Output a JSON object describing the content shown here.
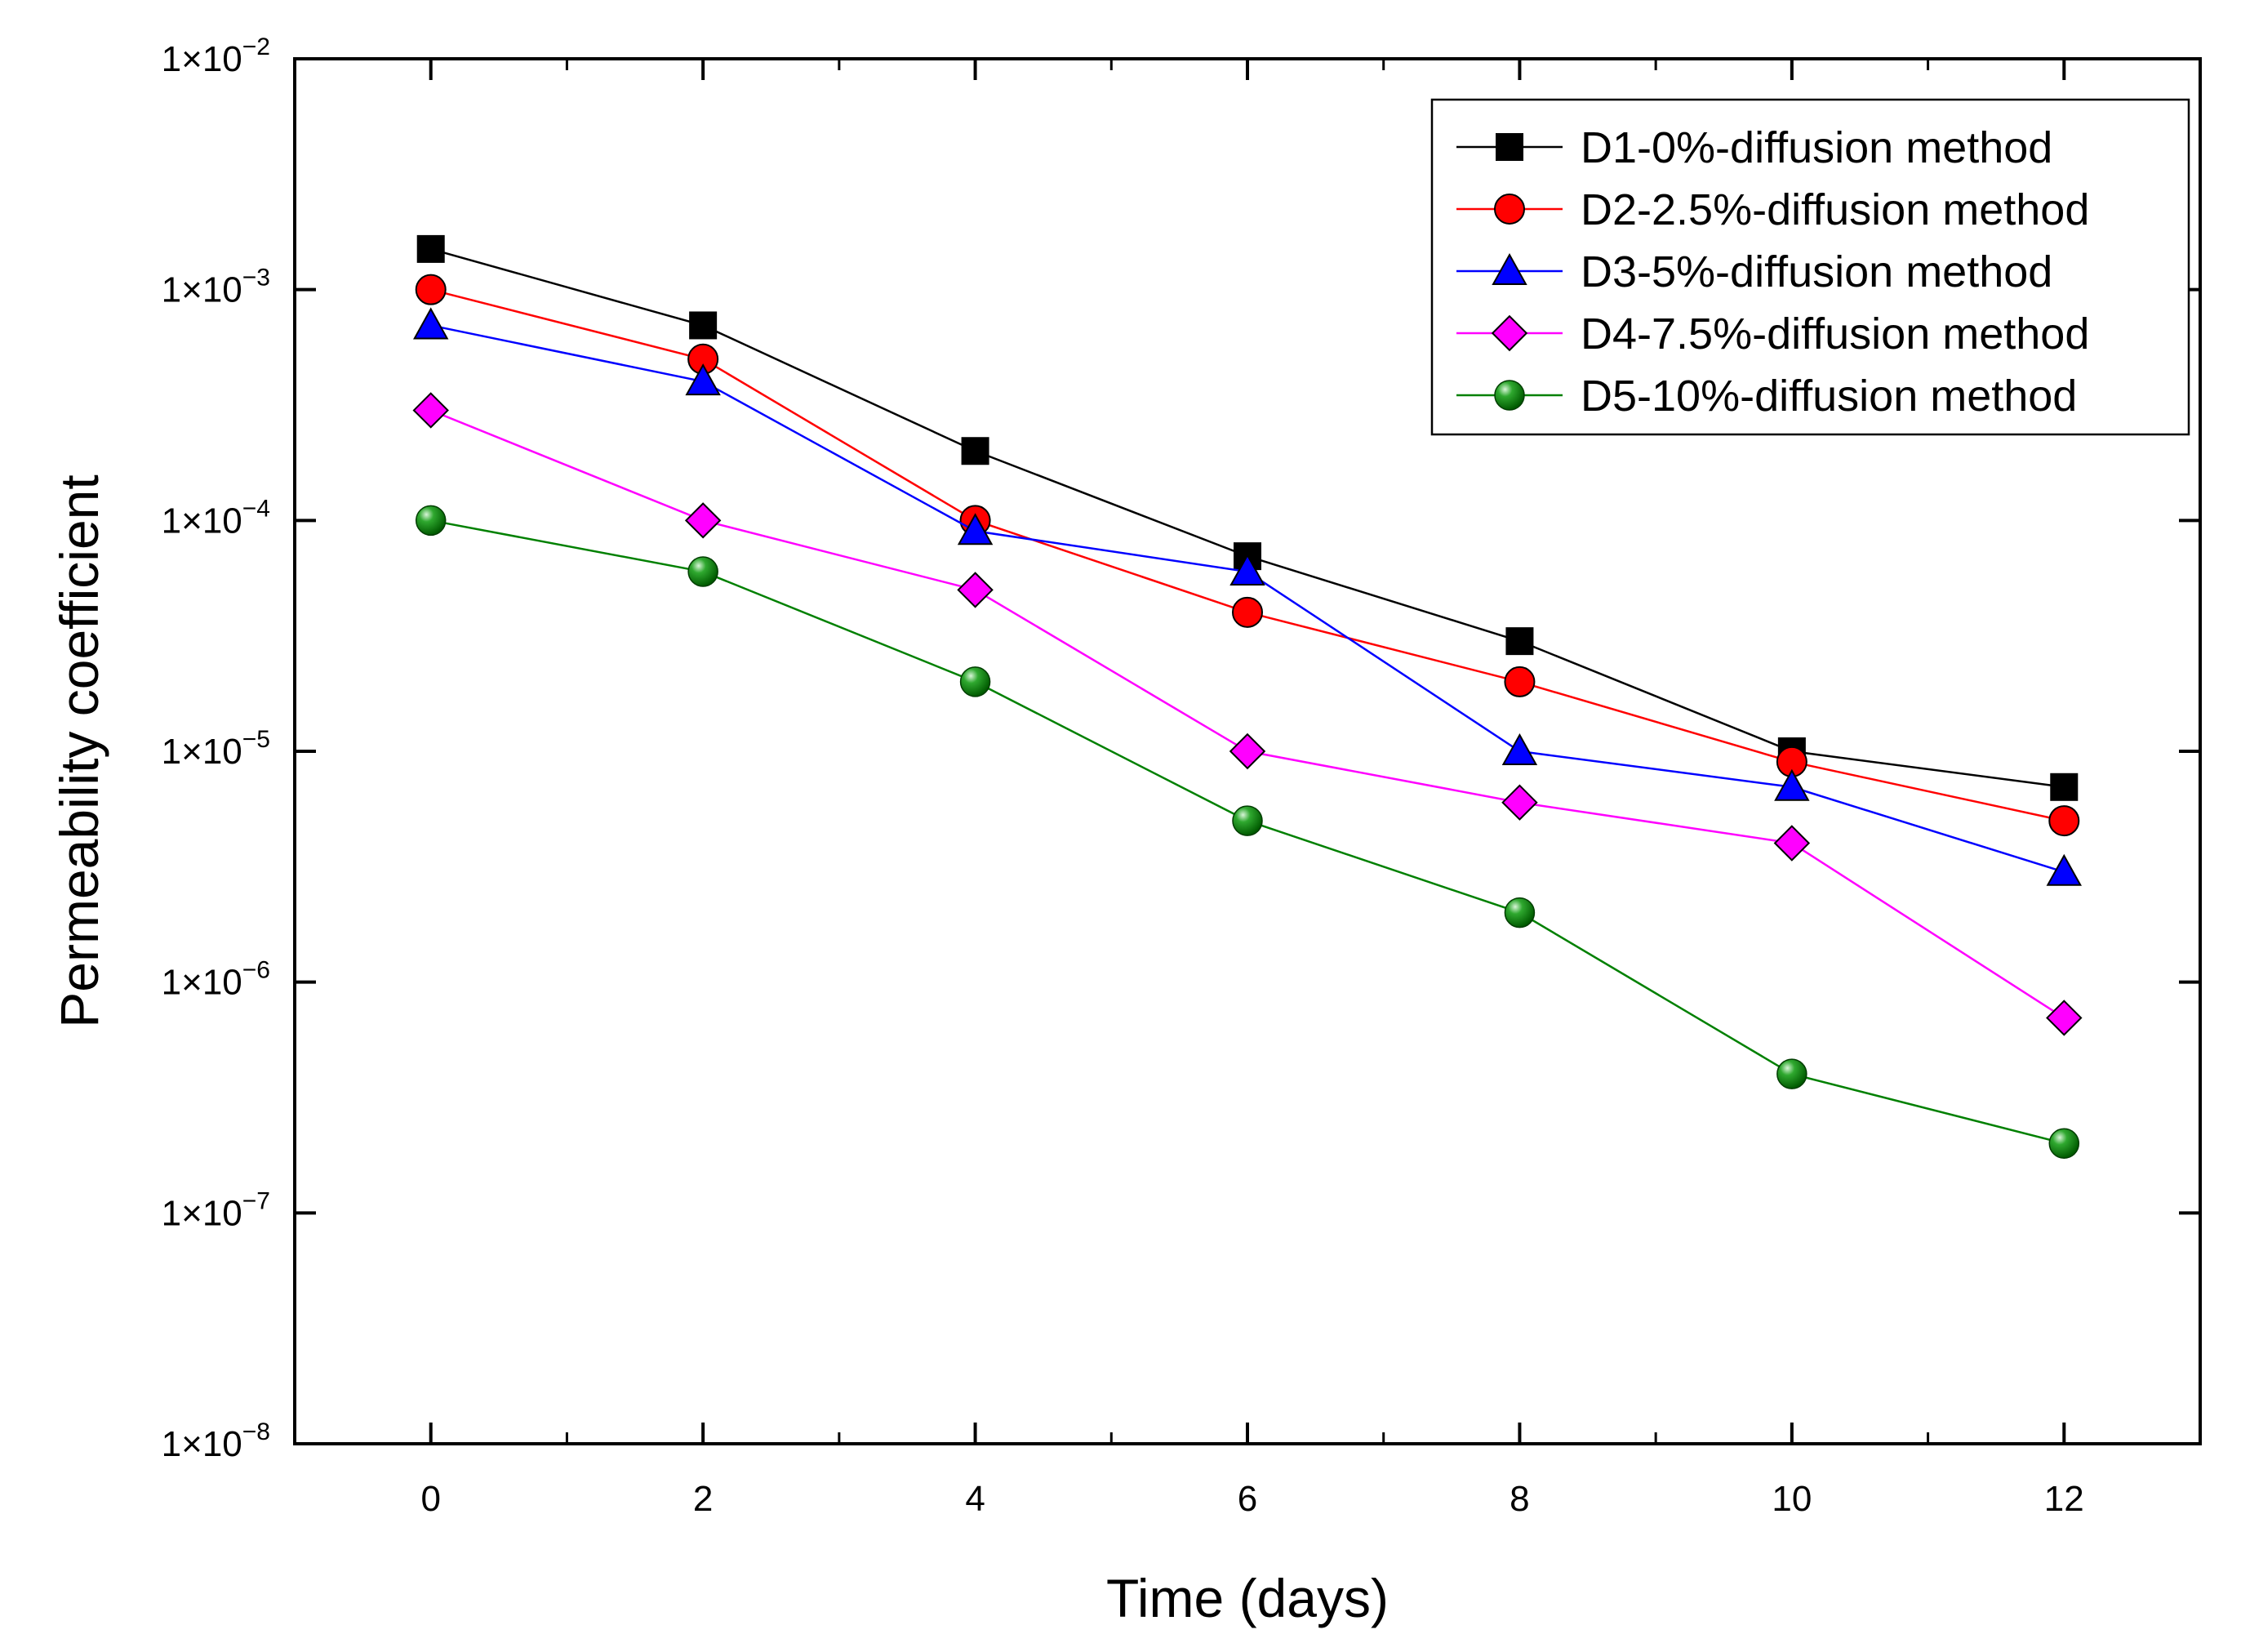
{
  "chart_data": {
    "type": "line",
    "title": "",
    "xlabel": "Time (days)",
    "ylabel": "Permeability coefficient",
    "yscale": "log",
    "xlim": [
      -1,
      13
    ],
    "ylim": [
      1e-08,
      0.01
    ],
    "xticks": [
      0,
      2,
      4,
      6,
      8,
      10,
      12
    ],
    "xtick_labels": [
      "0",
      "2",
      "4",
      "6",
      "8",
      "10",
      "12"
    ],
    "yticks": [
      {
        "value": 0.01,
        "base": "1×10",
        "exponent": "−2"
      },
      {
        "value": 0.001,
        "base": "1×10",
        "exponent": "−3"
      },
      {
        "value": 0.0001,
        "base": "1×10",
        "exponent": "−4"
      },
      {
        "value": 1e-05,
        "base": "1×10",
        "exponent": "−5"
      },
      {
        "value": 1e-06,
        "base": "1×10",
        "exponent": "−6"
      },
      {
        "value": 1e-07,
        "base": "1×10",
        "exponent": "−7"
      },
      {
        "value": 1e-08,
        "base": "1×10",
        "exponent": "−8"
      }
    ],
    "grid": false,
    "legend_position": "top-right",
    "x": [
      0,
      2,
      4,
      6,
      8,
      10,
      12
    ],
    "series": [
      {
        "name": "D1-0%-diffusion method",
        "color": "#000000",
        "marker": "square",
        "values": [
          0.0015,
          0.0007,
          0.0002,
          7e-05,
          3e-05,
          1e-05,
          7e-06
        ]
      },
      {
        "name": "D2-2.5%-diffusion method",
        "color": "#ff0000",
        "marker": "circle",
        "values": [
          0.001,
          0.0005,
          0.0001,
          4e-05,
          2e-05,
          9e-06,
          5e-06
        ]
      },
      {
        "name": "D3-5%-diffusion method",
        "color": "#0000ff",
        "marker": "triangle",
        "values": [
          0.0007,
          0.0004,
          9e-05,
          6e-05,
          1e-05,
          7e-06,
          3e-06
        ]
      },
      {
        "name": "D4-7.5%-diffusion method",
        "color": "#ff00ff",
        "marker": "diamond",
        "values": [
          0.0003,
          0.0001,
          5e-05,
          1e-05,
          6e-06,
          4e-06,
          7e-07
        ]
      },
      {
        "name": "D5-10%-diffusion method",
        "color": "#008000",
        "marker": "sphere",
        "values": [
          0.0001,
          6e-05,
          2e-05,
          5e-06,
          2e-06,
          4e-07,
          2e-07
        ]
      }
    ]
  }
}
